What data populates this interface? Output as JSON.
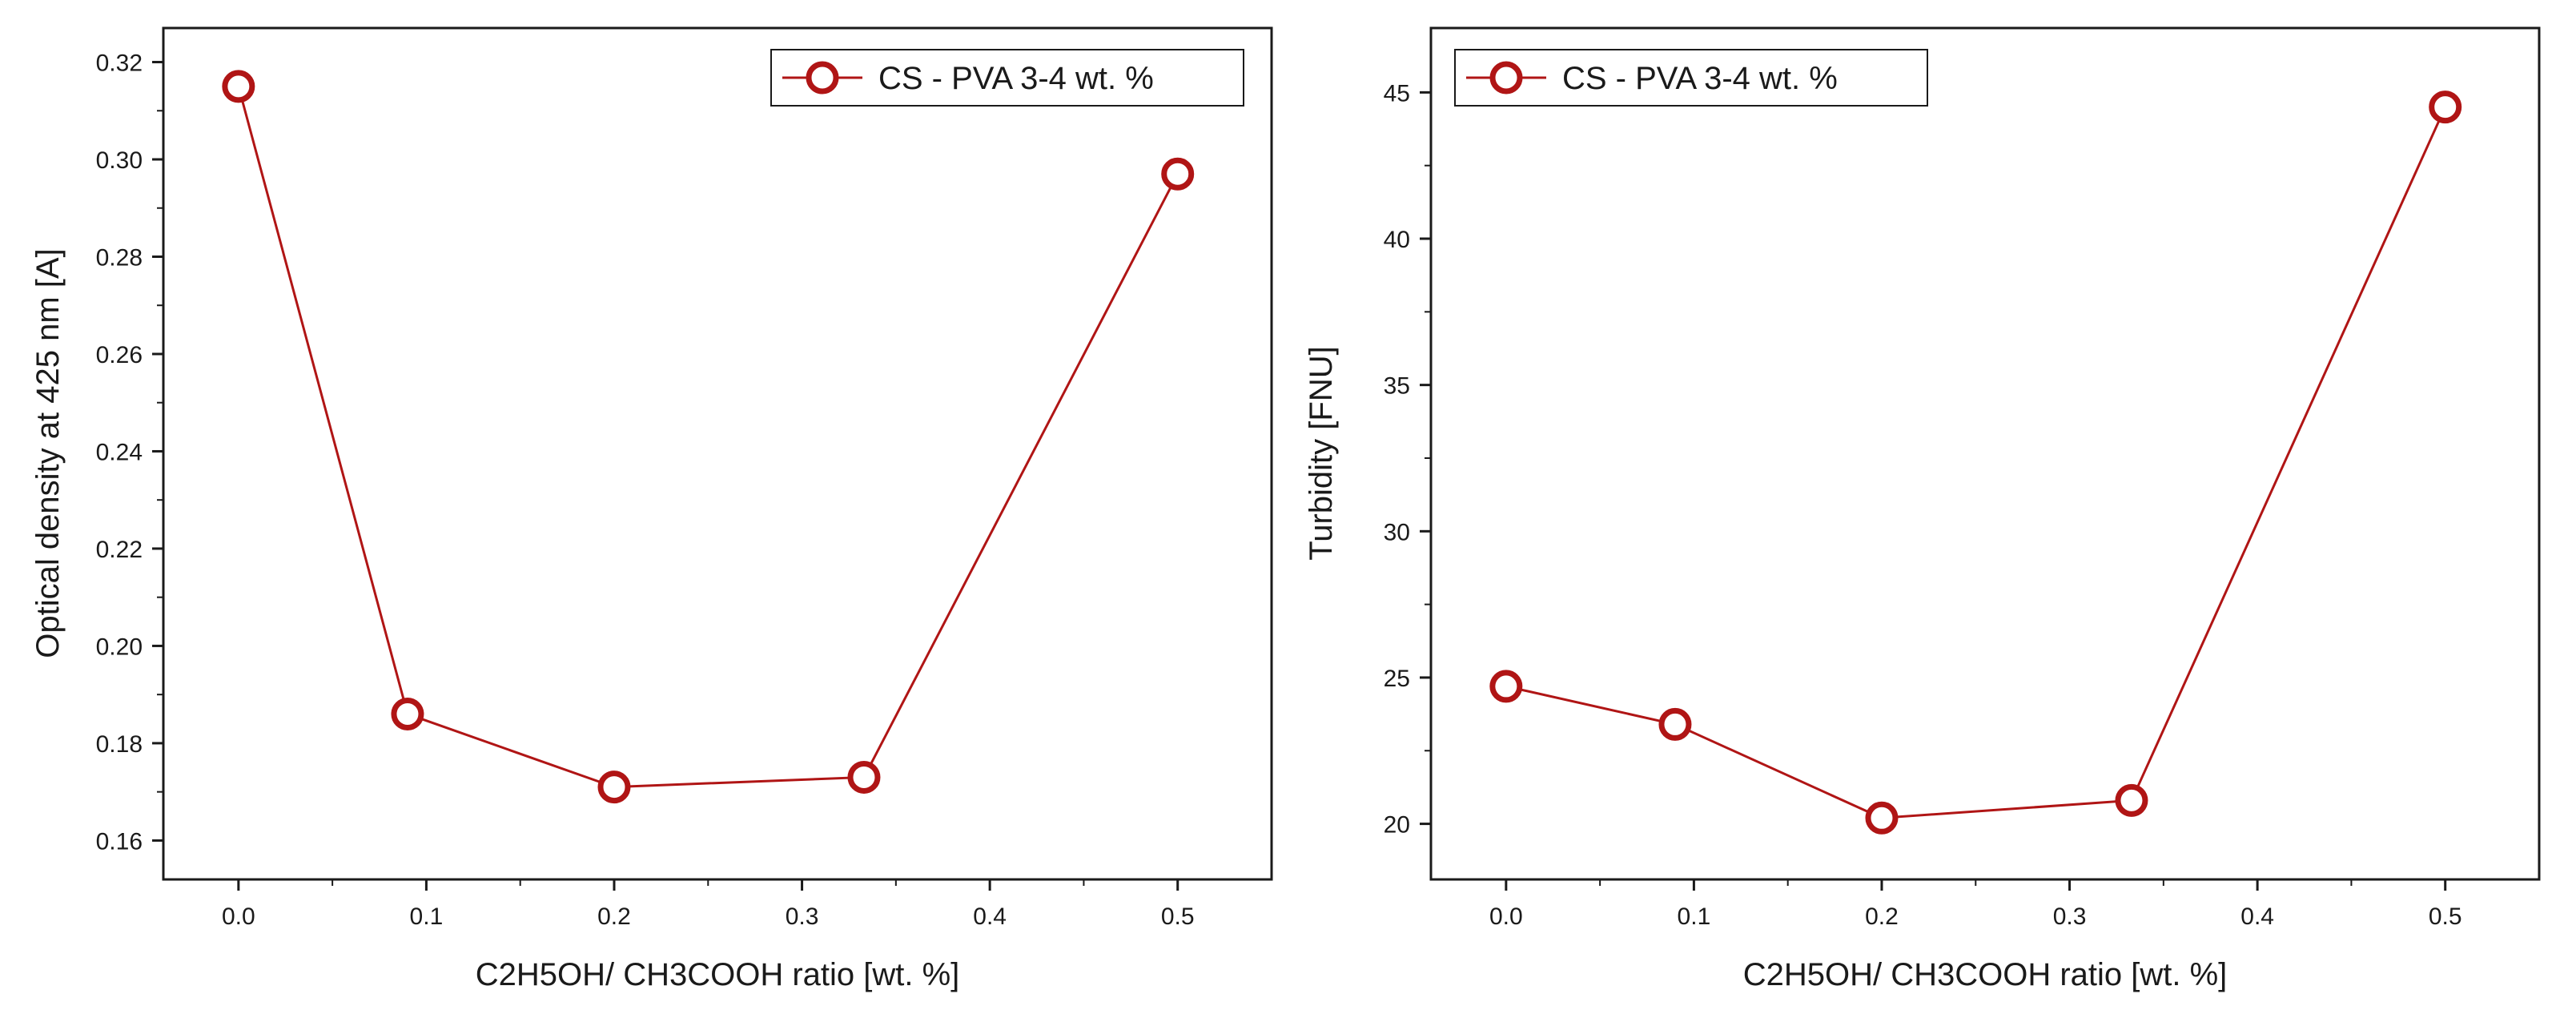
{
  "chart_data": [
    {
      "type": "line",
      "title": "",
      "xlabel": "C2H5OH/ CH3COOH ratio [wt. %]",
      "ylabel": "Optical density at 425 nm [A]",
      "xlim": [
        -0.04,
        0.55
      ],
      "ylim": [
        0.152,
        0.327
      ],
      "xticks": [
        0.0,
        0.1,
        0.2,
        0.3,
        0.4,
        0.5
      ],
      "xtick_labels": [
        "0.0",
        "0.1",
        "0.2",
        "0.3",
        "0.4",
        "0.5"
      ],
      "yticks": [
        0.16,
        0.18,
        0.2,
        0.22,
        0.24,
        0.26,
        0.28,
        0.3,
        0.32
      ],
      "ytick_labels": [
        "0.16",
        "0.18",
        "0.20",
        "0.22",
        "0.24",
        "0.26",
        "0.28",
        "0.30",
        "0.32"
      ],
      "grid": false,
      "legend_position": "top-right",
      "series": [
        {
          "name": "CS - PVA 3-4 wt. %",
          "color": "#b01515",
          "marker": "open-circle",
          "x": [
            0.0,
            0.09,
            0.2,
            0.333,
            0.5
          ],
          "y": [
            0.315,
            0.186,
            0.171,
            0.173,
            0.297
          ]
        }
      ]
    },
    {
      "type": "line",
      "title": "",
      "xlabel": "C2H5OH/ CH3COOH ratio [wt. %]",
      "ylabel": "Turbidity [FNU]",
      "xlim": [
        -0.04,
        0.55
      ],
      "ylim": [
        18.1,
        47.2
      ],
      "xticks": [
        0.0,
        0.1,
        0.2,
        0.3,
        0.4,
        0.5
      ],
      "xtick_labels": [
        "0.0",
        "0.1",
        "0.2",
        "0.3",
        "0.4",
        "0.5"
      ],
      "yticks": [
        20,
        25,
        30,
        35,
        40,
        45
      ],
      "ytick_labels": [
        "20",
        "25",
        "30",
        "35",
        "40",
        "45"
      ],
      "grid": false,
      "legend_position": "top-left",
      "series": [
        {
          "name": "CS - PVA 3-4 wt. %",
          "color": "#b01515",
          "marker": "open-circle",
          "x": [
            0.0,
            0.09,
            0.2,
            0.333,
            0.5
          ],
          "y": [
            24.7,
            23.4,
            20.2,
            20.8,
            44.5
          ]
        }
      ]
    }
  ]
}
